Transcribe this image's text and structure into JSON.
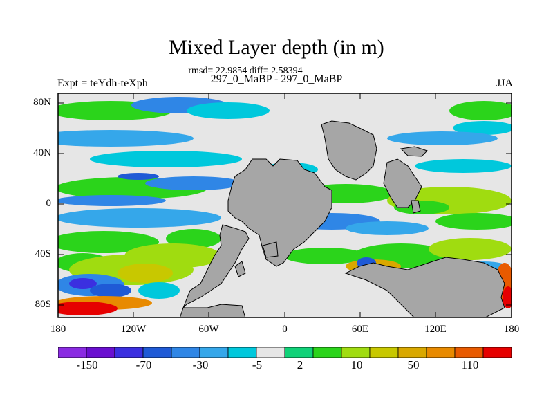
{
  "title": "Mixed Layer depth (in m)",
  "stats": "rmsd= 22.9854 diff= 2.58394",
  "subtitle": "297_0_MaBP - 297_0_MaBP",
  "experiment_label": "Expt = teYdh-teXph",
  "season": "JJA",
  "map": {
    "projection": "cylindrical-equidistant",
    "lon_range": [
      -180,
      180
    ],
    "lat_range": [
      -90,
      90
    ],
    "land_color": "#a6a6a6",
    "zero_band_color": "#e6e6e6",
    "lat_ticks": [
      "80N",
      "40N",
      "0",
      "40S",
      "80S"
    ],
    "lon_ticks": [
      "180",
      "120W",
      "60W",
      "0",
      "60E",
      "120E",
      "180"
    ]
  },
  "colorbar": {
    "colors": [
      "#8a2be2",
      "#6a0fd0",
      "#3b2fe0",
      "#1f5ad6",
      "#2f86e6",
      "#35a7ea",
      "#00c8dc",
      "#e6e6e6",
      "#10d278",
      "#2bd41b",
      "#a0dc10",
      "#c8c800",
      "#d9a800",
      "#e88a00",
      "#e85a00",
      "#e60000"
    ],
    "labels": [
      "-150",
      "-70",
      "-30",
      "-5",
      "2",
      "10",
      "50",
      "110"
    ]
  }
}
